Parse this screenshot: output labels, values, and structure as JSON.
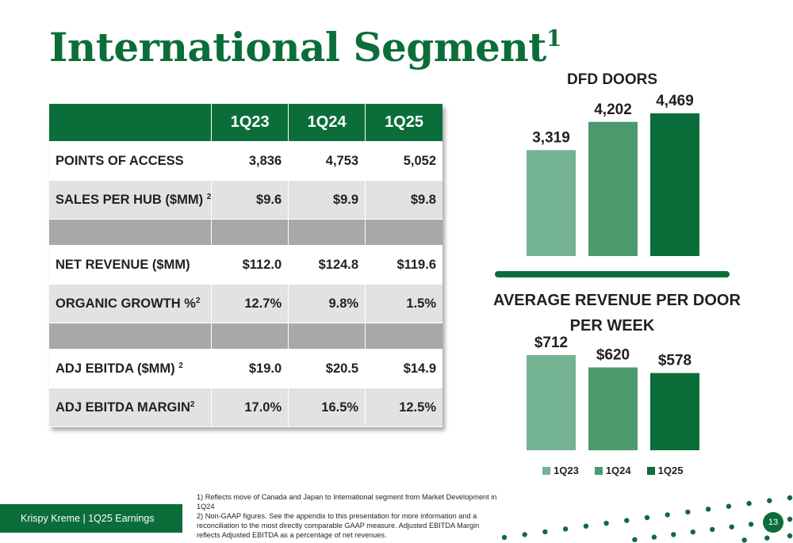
{
  "title": {
    "text": "International Segment",
    "sup": "1"
  },
  "table": {
    "headers": [
      "",
      "1Q23",
      "1Q24",
      "1Q25"
    ],
    "rows": [
      {
        "label": "POINTS OF ACCESS",
        "sup": "",
        "values": [
          "3,836",
          "4,753",
          "5,052"
        ]
      },
      {
        "label": "SALES PER HUB ($MM) ",
        "sup": "2",
        "values": [
          "$9.6",
          "$9.9",
          "$9.8"
        ]
      },
      {
        "label": "NET REVENUE ($MM)",
        "sup": "",
        "values": [
          "$112.0",
          "$124.8",
          "$119.6"
        ]
      },
      {
        "label": "ORGANIC GROWTH %",
        "sup": "2",
        "values": [
          "12.7%",
          "9.8%",
          "1.5%"
        ]
      },
      {
        "label": "ADJ EBITDA ($MM) ",
        "sup": "2",
        "values": [
          "$19.0",
          "$20.5",
          "$14.9"
        ]
      },
      {
        "label": "ADJ EBITDA MARGIN",
        "sup": "2",
        "values": [
          "17.0%",
          "16.5%",
          "12.5%"
        ]
      }
    ]
  },
  "chart_data": [
    {
      "type": "bar",
      "title": "DFD DOORS",
      "categories": [
        "1Q23",
        "1Q24",
        "1Q25"
      ],
      "values": [
        3319,
        4202,
        4469
      ],
      "data_labels": [
        "3,319",
        "4,202",
        "4,469"
      ],
      "colors": [
        "#74b394",
        "#4a9a6e",
        "#0b6e3a"
      ],
      "ylim": [
        0,
        4800
      ],
      "grid": false,
      "legend": "none"
    },
    {
      "type": "bar",
      "title": "AVERAGE REVENUE PER DOOR PER WEEK",
      "title_lines": [
        "AVERAGE REVENUE PER DOOR",
        "PER WEEK"
      ],
      "categories": [
        "1Q23",
        "1Q24",
        "1Q25"
      ],
      "values": [
        712,
        620,
        578
      ],
      "data_labels": [
        "$712",
        "$620",
        "$578"
      ],
      "colors": [
        "#74b394",
        "#4a9a6e",
        "#0b6e3a"
      ],
      "ylim": [
        0,
        800
      ],
      "grid": false,
      "legend": "bottom"
    }
  ],
  "legend": [
    {
      "label": "1Q23",
      "color": "#74b394"
    },
    {
      "label": "1Q24",
      "color": "#4a9a6e"
    },
    {
      "label": "1Q25",
      "color": "#0b6e3a"
    }
  ],
  "footnotes": [
    "1) Reflects move of Canada and Japan to International segment from Market Development in 1Q24",
    "2) Non-GAAP figures. See the appendix to this presentation for more information and a reconciliation to the most directly comparable GAAP measure. Adjusted EBITDA Margin reflects Adjusted EBITDA as a percentage of net revenues."
  ],
  "footer": {
    "text": "Krispy Kreme  |  1Q25 Earnings"
  },
  "page_number": "13",
  "colors": {
    "brand_green": "#0b6e3a",
    "header_gray": "#a8a8a8",
    "row_gray": "#e2e2e2"
  }
}
